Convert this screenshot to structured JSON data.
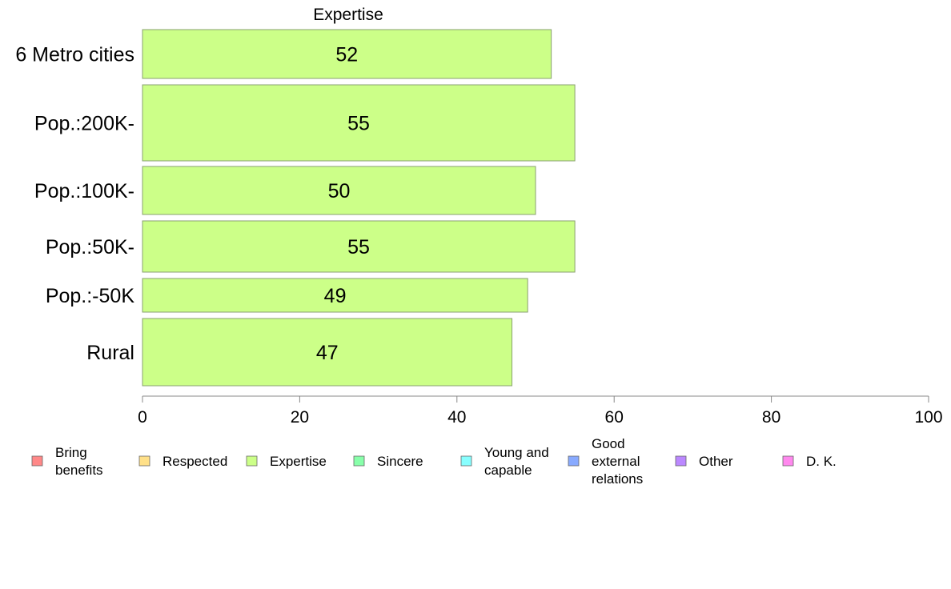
{
  "chart_data": {
    "type": "bar",
    "orientation": "horizontal",
    "title": "Expertise",
    "categories": [
      "6 Metro cities",
      "Pop.:200K-",
      "Pop.:100K-",
      "Pop.:50K-",
      "Pop.:-50K",
      "Rural"
    ],
    "values": [
      52,
      55,
      50,
      55,
      49,
      47
    ],
    "xlim": [
      0,
      100
    ],
    "xticks": [
      "0",
      "20",
      "40",
      "60",
      "80",
      "100"
    ],
    "xlabel": "",
    "ylabel": "",
    "grid": false,
    "bar_color": "#ccff88",
    "legend_placement": "bottom",
    "legend": [
      {
        "label": [
          "Bring",
          "benefits"
        ],
        "color": "#ff8888"
      },
      {
        "label": [
          "Respected"
        ],
        "color": "#ffe088"
      },
      {
        "label": [
          "Expertise"
        ],
        "color": "#ccff88"
      },
      {
        "label": [
          "Sincere"
        ],
        "color": "#88ffaa"
      },
      {
        "label": [
          "Young and",
          "capable"
        ],
        "color": "#88ffff"
      },
      {
        "label": [
          "Good",
          "external",
          "relations"
        ],
        "color": "#88aaff"
      },
      {
        "label": [
          "Other"
        ],
        "color": "#bb88ff"
      },
      {
        "label": [
          "D. K."
        ],
        "color": "#ff88ee"
      }
    ]
  }
}
